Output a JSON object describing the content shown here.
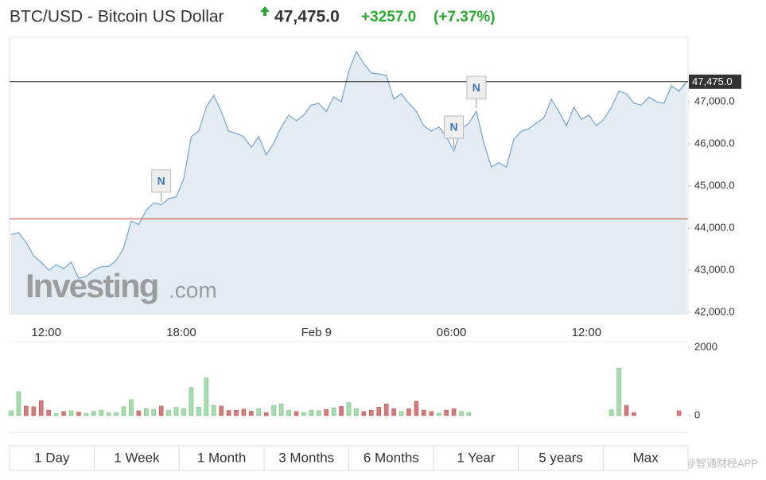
{
  "chart_data": {
    "type": "line",
    "title": "BTC/USD - Bitcoin US Dollar",
    "last": {
      "value": 47475,
      "label": "47,475.0"
    },
    "change": {
      "value": 3257,
      "label": "+3257.0"
    },
    "change_pct": "(+7.37%)",
    "categories": [
      null,
      null,
      null,
      null,
      null,
      "12:00",
      null,
      null,
      null,
      null,
      null,
      null,
      null,
      null,
      null,
      null,
      null,
      null,
      null,
      null,
      null,
      null,
      null,
      "18:00",
      null,
      null,
      null,
      null,
      null,
      null,
      null,
      null,
      null,
      null,
      null,
      null,
      null,
      null,
      null,
      null,
      null,
      "Feb 9",
      null,
      null,
      null,
      null,
      null,
      null,
      null,
      null,
      null,
      null,
      null,
      null,
      null,
      null,
      null,
      null,
      null,
      "06:00",
      null,
      null,
      null,
      null,
      null,
      null,
      null,
      null,
      null,
      null,
      null,
      null,
      null,
      null,
      null,
      null,
      null,
      "12:00",
      null,
      null,
      null,
      null,
      null,
      null,
      null,
      null,
      null,
      null,
      null,
      null,
      null
    ],
    "values": [
      43850,
      43890,
      43660,
      43340,
      43190,
      43000,
      43130,
      43040,
      43190,
      42810,
      42850,
      43000,
      43080,
      43090,
      43230,
      43530,
      44170,
      44080,
      44420,
      44600,
      44550,
      44700,
      44740,
      45170,
      46170,
      46300,
      46870,
      47150,
      46770,
      46300,
      46250,
      46170,
      45920,
      46170,
      45740,
      46020,
      46400,
      46680,
      46550,
      46680,
      46920,
      46960,
      46770,
      47110,
      47000,
      47720,
      48190,
      47910,
      47680,
      47660,
      47620,
      47060,
      47190,
      46960,
      46770,
      46430,
      46300,
      46400,
      46170,
      45830,
      46360,
      46490,
      46770,
      46020,
      45450,
      45550,
      45450,
      46110,
      46300,
      46360,
      46490,
      46620,
      47060,
      46770,
      46430,
      46870,
      46580,
      46680,
      46430,
      46580,
      46870,
      47250,
      47190,
      46960,
      46920,
      47110,
      47000,
      46960,
      47380,
      47250,
      47475
    ],
    "color": "#7ea8d0",
    "fill": "#e4ecf3",
    "ylim": [
      41962,
      48528
    ],
    "yticks": [
      {
        "value": 42000,
        "label": "42,000.0"
      },
      {
        "value": 43000,
        "label": "43,000.0"
      },
      {
        "value": 44000,
        "label": "44,000.0"
      },
      {
        "value": 45000,
        "label": "45,000.0"
      },
      {
        "value": 46000,
        "label": "46,000.0"
      },
      {
        "value": 47000,
        "label": "47,000.0"
      }
    ],
    "annotations": [
      {
        "text": "N",
        "at": 20
      },
      {
        "text": "N",
        "at": 59
      },
      {
        "text": "N",
        "at": 62
      }
    ],
    "watermark": "Investing",
    "watermark_suffix": ".com",
    "volume": {
      "values": [
        140,
        700,
        280,
        260,
        440,
        160,
        60,
        120,
        140,
        100,
        60,
        120,
        160,
        80,
        90,
        260,
        470,
        140,
        200,
        180,
        280,
        150,
        240,
        200,
        820,
        250,
        1100,
        300,
        280,
        150,
        160,
        190,
        130,
        200,
        90,
        300,
        340,
        150,
        120,
        90,
        160,
        140,
        180,
        230,
        270,
        380,
        200,
        120,
        160,
        250,
        340,
        200,
        120,
        200,
        420,
        160,
        120,
        70,
        160,
        200,
        120,
        90,
        null,
        null,
        null,
        null,
        null,
        null,
        null,
        null,
        null,
        null,
        null,
        null,
        null,
        null,
        null,
        null,
        null,
        null,
        170,
        1390,
        300,
        90,
        null,
        null,
        null,
        null,
        null,
        140,
        null
      ],
      "ylim": [
        0,
        2000
      ],
      "yticks": [
        0,
        2000
      ],
      "colors": {
        "up": "#a8dcae",
        "down": "#d47a7a"
      }
    }
  },
  "range_buttons": [
    "1 Day",
    "1 Week",
    "1 Month",
    "3 Months",
    "6 Months",
    "1 Year",
    "5 years",
    "Max"
  ],
  "corner_mark": "@智通财经APP"
}
